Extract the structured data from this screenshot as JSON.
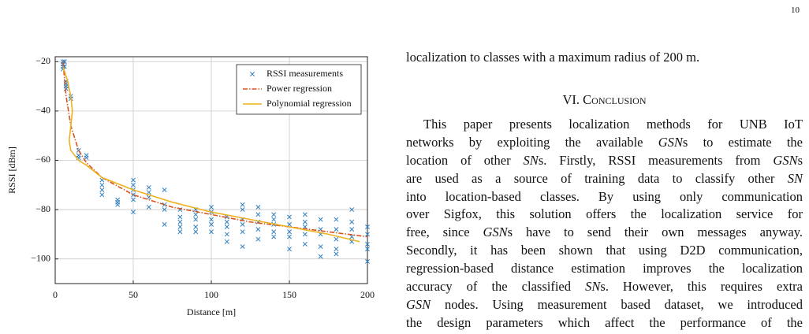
{
  "page_number": "10",
  "chart_data": {
    "type": "scatter",
    "xlabel": "Distance [m]",
    "ylabel": "RSSI [dBm]",
    "xlim": [
      0,
      200
    ],
    "ylim": [
      -110,
      -18
    ],
    "xticks": [
      0,
      50,
      100,
      150,
      200
    ],
    "yticks": [
      {
        "value": -100,
        "label": "−100"
      },
      {
        "value": -80,
        "label": "−80"
      },
      {
        "value": -60,
        "label": "−60"
      },
      {
        "value": -40,
        "label": "−40"
      },
      {
        "value": -20,
        "label": "−20"
      }
    ],
    "grid": true,
    "legend": "upper right",
    "series": [
      {
        "name": "RSSI measurements",
        "type": "scatter",
        "color": "#2f7fc1",
        "x": [
          5,
          5,
          5,
          5,
          6,
          6,
          7,
          7,
          7,
          7,
          10,
          10,
          15,
          15,
          15,
          20,
          20,
          30,
          30,
          30,
          30,
          40,
          40,
          40,
          50,
          50,
          50,
          50,
          50,
          50,
          60,
          60,
          60,
          60,
          70,
          70,
          70,
          70,
          80,
          80,
          80,
          80,
          80,
          90,
          90,
          90,
          90,
          90,
          100,
          100,
          100,
          100,
          100,
          110,
          110,
          110,
          110,
          110,
          120,
          120,
          120,
          120,
          120,
          120,
          130,
          130,
          130,
          130,
          130,
          140,
          140,
          140,
          140,
          140,
          150,
          150,
          150,
          150,
          150,
          160,
          160,
          160,
          160,
          160,
          170,
          170,
          170,
          170,
          170,
          180,
          180,
          180,
          180,
          180,
          190,
          190,
          190,
          190,
          190,
          200,
          200,
          200,
          200,
          200
        ],
        "values": [
          -20,
          -21,
          -22,
          -23,
          -20,
          -22,
          -28,
          -29,
          -30,
          -31,
          -34,
          -35,
          -56,
          -58,
          -59,
          -58,
          -59,
          -68,
          -70,
          -72,
          -74,
          -76,
          -77,
          -78,
          -68,
          -70,
          -72,
          -74,
          -76,
          -81,
          -71,
          -73,
          -75,
          -79,
          -72,
          -78,
          -80,
          -86,
          -80,
          -83,
          -85,
          -87,
          -89,
          -80,
          -82,
          -84,
          -87,
          -89,
          -79,
          -81,
          -84,
          -86,
          -89,
          -83,
          -85,
          -87,
          -90,
          -93,
          -78,
          -80,
          -84,
          -86,
          -89,
          -95,
          -79,
          -82,
          -85,
          -88,
          -92,
          -82,
          -84,
          -86,
          -89,
          -91,
          -83,
          -86,
          -89,
          -91,
          -96,
          -82,
          -85,
          -87,
          -90,
          -94,
          -84,
          -88,
          -90,
          -95,
          -99,
          -84,
          -88,
          -92,
          -96,
          -98,
          -80,
          -85,
          -88,
          -91,
          -93,
          -87,
          -90,
          -94,
          -96,
          -101
        ]
      },
      {
        "name": "Power regression",
        "type": "line",
        "dash": "6 2 1.5 2",
        "color": "#d9541e",
        "x": [
          5,
          7,
          10,
          15,
          20,
          30,
          50,
          75,
          100,
          125,
          150,
          175,
          200
        ],
        "values": [
          -20,
          -34,
          -46,
          -56,
          -61,
          -67,
          -74,
          -79,
          -82,
          -85,
          -87,
          -89,
          -91
        ]
      },
      {
        "name": "Polynomial regression",
        "type": "line",
        "color": "#edb120",
        "x": [
          5,
          8,
          10,
          11,
          10,
          9,
          10,
          15,
          20,
          30,
          50,
          75,
          100,
          125,
          150,
          175,
          195
        ],
        "values": [
          -22,
          -28,
          -34,
          -40,
          -46,
          -52,
          -56,
          -60,
          -62,
          -67,
          -72,
          -77,
          -81,
          -84,
          -87,
          -90,
          -93
        ]
      }
    ]
  },
  "text": {
    "intro_line": "localization to classes with a maximum radius of 200 m.",
    "heading": "VI. Conclusion",
    "lines": [
      [
        "This paper presents localization methods for UNB IoT"
      ],
      [
        "networks by exploiting the available ",
        {
          "text": "GSN"
        },
        "s to estimate the"
      ],
      [
        "location of other ",
        {
          "text": "SN"
        },
        "s. Firstly, RSSI measurements from ",
        {
          "text": "GSN"
        },
        "s"
      ],
      [
        "are used as a source of training data to classify other ",
        {
          "text": "SN"
        }
      ],
      [
        "into location-based classes. By using only communication"
      ],
      [
        "over Sigfox, this solution offers the localization service for"
      ],
      [
        "free, since ",
        {
          "text": "GSN"
        },
        "s have to send their own messages anyway."
      ],
      [
        "Secondly, it has been shown that using D2D communication,"
      ],
      [
        "regression-based distance estimation improves the localization"
      ],
      [
        "accuracy of the classified ",
        {
          "text": "SN"
        },
        "s. However, this requires extra"
      ],
      [
        {
          "text": "GSN"
        },
        " nodes. Using measurement based dataset, we introduced"
      ],
      [
        "the design parameters which affect the performance of the"
      ]
    ]
  }
}
